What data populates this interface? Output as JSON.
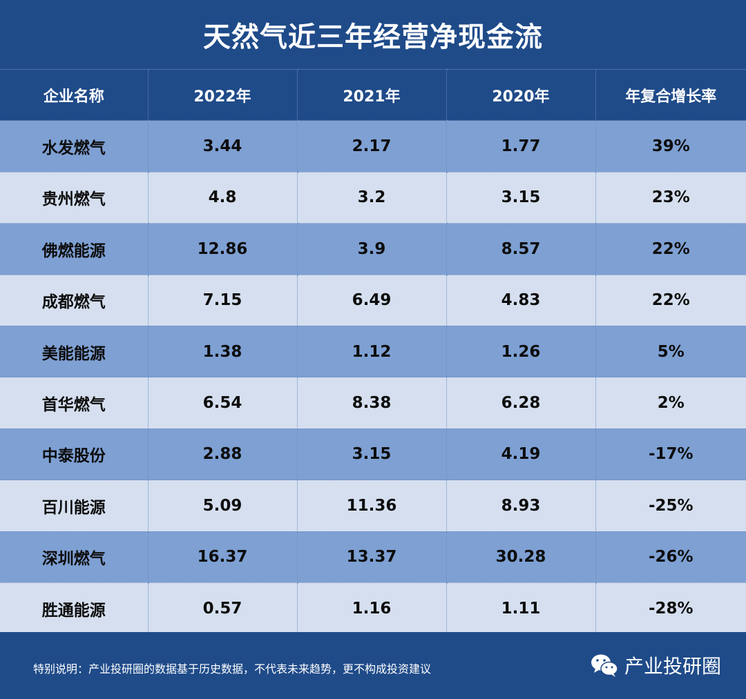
{
  "title": "天然气近三年经营净现金流",
  "chart_data": {
    "type": "table",
    "columns": [
      "企业名称",
      "2022年",
      "2021年",
      "2020年",
      "年复合增长率"
    ],
    "rows": [
      [
        "水发燃气",
        "3.44",
        "2.17",
        "1.77",
        "39%"
      ],
      [
        "贵州燃气",
        "4.8",
        "3.2",
        "3.15",
        "23%"
      ],
      [
        "佛燃能源",
        "12.86",
        "3.9",
        "8.57",
        "22%"
      ],
      [
        "成都燃气",
        "7.15",
        "6.49",
        "4.83",
        "22%"
      ],
      [
        "美能能源",
        "1.38",
        "1.12",
        "1.26",
        "5%"
      ],
      [
        "首华燃气",
        "6.54",
        "8.38",
        "6.28",
        "2%"
      ],
      [
        "中泰股份",
        "2.88",
        "3.15",
        "4.19",
        "-17%"
      ],
      [
        "百川能源",
        "5.09",
        "11.36",
        "8.93",
        "-25%"
      ],
      [
        "深圳燃气",
        "16.37",
        "13.37",
        "30.28",
        "-26%"
      ],
      [
        "胜通能源",
        "0.57",
        "1.16",
        "1.11",
        "-28%"
      ]
    ]
  },
  "footer": {
    "note": "特别说明：产业投研圈的数据基于历史数据，不代表未来趋势，更不构成投资建议",
    "brand": "产业投研圈",
    "brand_icon": "wechat-icon"
  },
  "colors": {
    "header_bg": "#1f4b89",
    "row_dark": "#7ea0d3",
    "row_light": "#d5dfef"
  }
}
